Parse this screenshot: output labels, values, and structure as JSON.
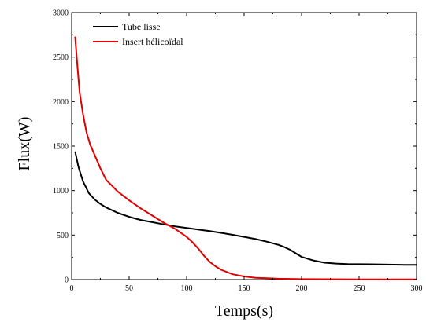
{
  "chart_data": {
    "type": "line",
    "xlabel": "Temps(s)",
    "ylabel": "Flux(W)",
    "xlim": [
      0,
      300
    ],
    "ylim": [
      0,
      3000
    ],
    "x_ticks": [
      0,
      50,
      100,
      150,
      200,
      250,
      300
    ],
    "y_ticks": [
      0,
      500,
      1000,
      1500,
      2000,
      2500,
      3000
    ],
    "legend_position": "top-left",
    "grid": false,
    "series": [
      {
        "name": "Tube lisse",
        "color": "#000000",
        "x": [
          3,
          6,
          10,
          15,
          20,
          25,
          30,
          40,
          50,
          60,
          70,
          80,
          90,
          100,
          110,
          120,
          130,
          140,
          150,
          160,
          170,
          180,
          185,
          190,
          195,
          200,
          210,
          220,
          230,
          240,
          250,
          260,
          270,
          280,
          290,
          300
        ],
        "y": [
          1440,
          1260,
          1100,
          970,
          900,
          850,
          810,
          750,
          705,
          670,
          645,
          620,
          598,
          580,
          562,
          545,
          525,
          503,
          480,
          455,
          425,
          390,
          365,
          335,
          295,
          255,
          215,
          190,
          180,
          175,
          173,
          172,
          170,
          168,
          166,
          165
        ]
      },
      {
        "name": "Insert hélicoïdal",
        "color": "#e00000",
        "x": [
          3,
          5,
          7,
          10,
          13,
          16,
          20,
          25,
          30,
          40,
          50,
          60,
          70,
          80,
          90,
          100,
          105,
          110,
          115,
          120,
          125,
          130,
          140,
          150,
          160,
          170,
          180,
          190,
          200,
          220,
          250,
          300
        ],
        "y": [
          2730,
          2400,
          2100,
          1850,
          1650,
          1520,
          1400,
          1250,
          1120,
          990,
          890,
          800,
          720,
          640,
          570,
          480,
          420,
          350,
          270,
          200,
          150,
          110,
          60,
          35,
          20,
          15,
          10,
          8,
          5,
          4,
          3,
          2
        ]
      }
    ]
  }
}
